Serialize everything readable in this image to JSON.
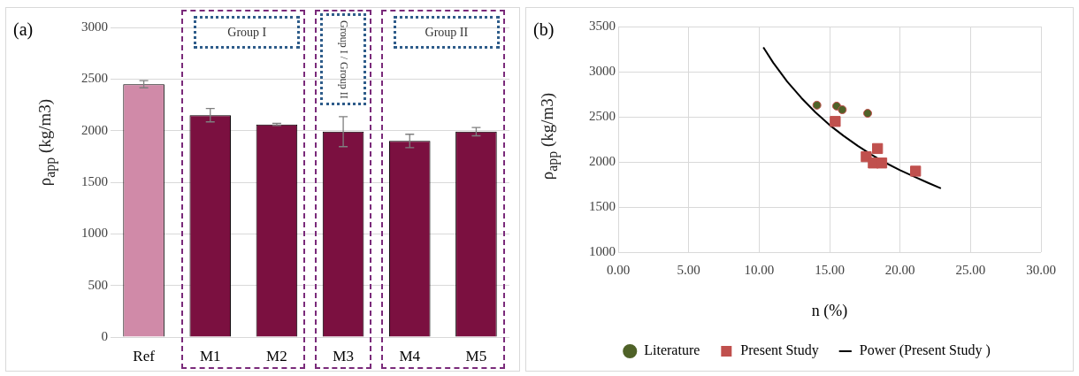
{
  "chart_data": [
    {
      "type": "bar",
      "title": "(a)",
      "ylabel": "ρ$_{app}$ (kg/m3)",
      "categories": [
        "Ref",
        "M1",
        "M2",
        "M3",
        "M4",
        "M5"
      ],
      "values": [
        2450,
        2150,
        2060,
        1990,
        1900,
        1990
      ],
      "errors": [
        35,
        65,
        10,
        145,
        65,
        40
      ],
      "colors": [
        "#d08aa8",
        "#7b1040",
        "#7b1040",
        "#7b1040",
        "#7b1040",
        "#7b1040"
      ],
      "ylim": [
        0,
        3000
      ],
      "yticks": [
        0,
        500,
        1000,
        1500,
        2000,
        2500,
        3000
      ],
      "grid": "y",
      "annotations": [
        "Group I",
        "Group I / Group II",
        "Group II"
      ]
    },
    {
      "type": "scatter",
      "title": "(b)",
      "xlabel": "n (%)",
      "ylabel": "ρ$_{app}$ (kg/m3)",
      "xlim": [
        0,
        30
      ],
      "xticks": [
        {
          "value": 0,
          "label": "0.00"
        },
        {
          "value": 5,
          "label": "5.00"
        },
        {
          "value": 10,
          "label": "10.00"
        },
        {
          "value": 15,
          "label": "15.00"
        },
        {
          "value": 20,
          "label": "20.00"
        },
        {
          "value": 25,
          "label": "25.00"
        },
        {
          "value": 30,
          "label": "30.00"
        }
      ],
      "ylim": [
        1000,
        3500
      ],
      "yticks": [
        1000,
        1500,
        2000,
        2500,
        3000,
        3500
      ],
      "grid": true,
      "legend": "bottom",
      "series": [
        {
          "name": "Literature",
          "type": "scatter",
          "marker": "circle",
          "color": "#4f6228",
          "x": [
            14.1,
            15.5,
            15.9,
            17.7
          ],
          "values": [
            2630,
            2620,
            2580,
            2540
          ]
        },
        {
          "name": "Present Study",
          "type": "scatter",
          "marker": "square",
          "color": "#c0504d",
          "x": [
            15.4,
            18.4,
            17.6,
            18.1,
            21.1,
            18.7
          ],
          "values": [
            2450,
            2150,
            2060,
            1990,
            1900,
            1990
          ]
        },
        {
          "name": "Power (Present Study )",
          "type": "line",
          "marker": "none",
          "color": "#000000",
          "x": [
            10.3,
            11,
            12,
            13,
            14,
            15,
            16,
            17,
            18,
            19,
            20,
            21,
            22,
            22.9
          ],
          "values": [
            3270,
            3100,
            2890,
            2710,
            2550,
            2410,
            2290,
            2180,
            2080,
            1990,
            1910,
            1840,
            1770,
            1710
          ]
        }
      ]
    }
  ]
}
